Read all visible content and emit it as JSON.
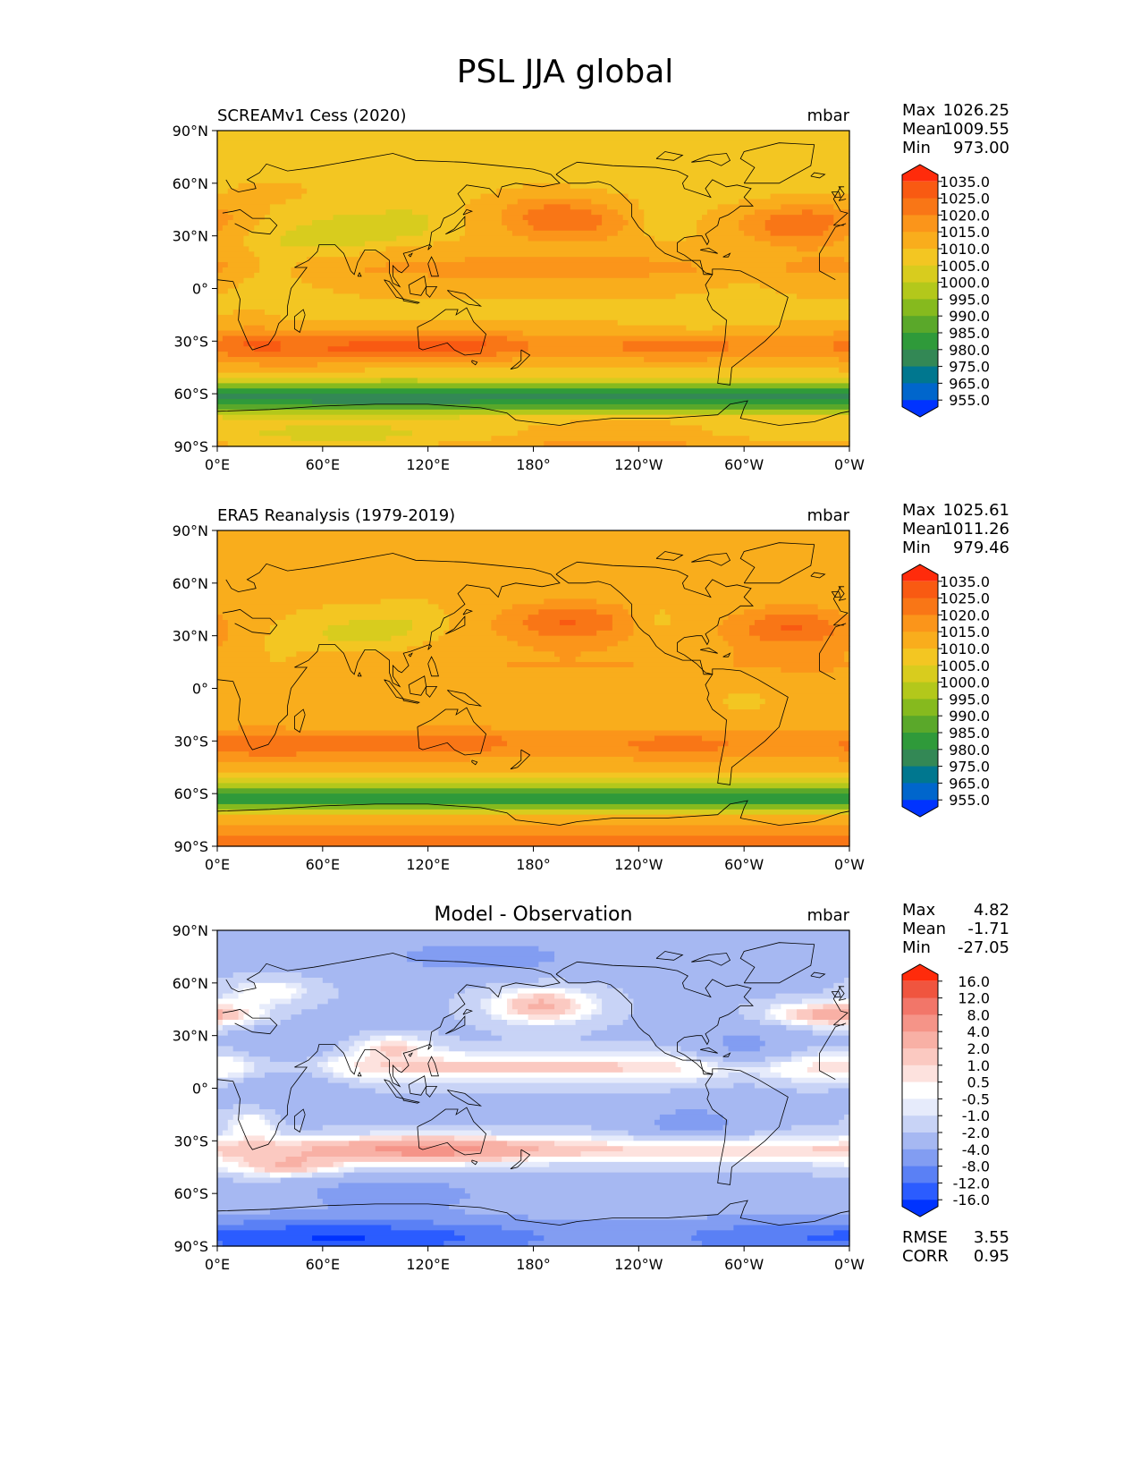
{
  "figure_title": "PSL JJA global",
  "lat_ticks": [
    "90°N",
    "60°N",
    "30°N",
    "0°",
    "30°S",
    "60°S",
    "90°S"
  ],
  "lon_ticks": [
    "0°E",
    "60°E",
    "120°E",
    "180°",
    "120°W",
    "60°W",
    "0°W"
  ],
  "colors": {
    "abs": [
      "#0033ff",
      "#0066cc",
      "#00778f",
      "#338855",
      "#2f9a3a",
      "#5aa82a",
      "#86ba1e",
      "#b3c81b",
      "#d8cc1e",
      "#f3c622",
      "#f9ad1c",
      "#fb951a",
      "#f97616",
      "#f95a12",
      "#ff2b0b"
    ],
    "diff": [
      "#0033ff",
      "#2b5cff",
      "#5a80f5",
      "#829df2",
      "#a6b8f2",
      "#c8d3f6",
      "#e6ebfb",
      "#ffffff",
      "#fde2de",
      "#fbc9c1",
      "#f8b0a5",
      "#f59488",
      "#f27669",
      "#f0553f",
      "#ff2b0b"
    ]
  },
  "chart_data": [
    {
      "type": "heatmap",
      "title": "SCREAMv1 Cess (2020)",
      "units": "mbar",
      "stats": [
        {
          "label": "Max",
          "value": "1026.25"
        },
        {
          "label": "Mean",
          "value": "1009.55"
        },
        {
          "label": "Min",
          "value": "973.00"
        }
      ],
      "colorbar_levels": [
        "1035.0",
        "1025.0",
        "1020.0",
        "1015.0",
        "1010.0",
        "1005.0",
        "1000.0",
        "995.0",
        "990.0",
        "985.0",
        "980.0",
        "975.0",
        "965.0",
        "955.0"
      ],
      "colormap": "abs",
      "x_range": [
        0,
        360
      ],
      "y_range": [
        -90,
        90
      ],
      "land_pressure_present": true
    },
    {
      "type": "heatmap",
      "title": "ERA5 Reanalysis (1979-2019)",
      "units": "mbar",
      "stats": [
        {
          "label": "Max",
          "value": "1025.61"
        },
        {
          "label": "Mean",
          "value": "1011.26"
        },
        {
          "label": "Min",
          "value": "979.46"
        }
      ],
      "colorbar_levels": [
        "1035.0",
        "1025.0",
        "1020.0",
        "1015.0",
        "1010.0",
        "1005.0",
        "1000.0",
        "995.0",
        "990.0",
        "985.0",
        "980.0",
        "975.0",
        "965.0",
        "955.0"
      ],
      "colormap": "abs",
      "x_range": [
        0,
        360
      ],
      "y_range": [
        -90,
        90
      ]
    },
    {
      "type": "heatmap",
      "title": "Model - Observation",
      "units": "mbar",
      "stats": [
        {
          "label": "Max",
          "value": "4.82"
        },
        {
          "label": "Mean",
          "value": "-1.71"
        },
        {
          "label": "Min",
          "value": "-27.05"
        }
      ],
      "colorbar_levels": [
        "16.0",
        "12.0",
        "8.0",
        "4.0",
        "2.0",
        "1.0",
        "0.5",
        "-0.5",
        "-1.0",
        "-2.0",
        "-4.0",
        "-8.0",
        "-12.0",
        "-16.0"
      ],
      "colormap": "diff",
      "x_range": [
        0,
        360
      ],
      "y_range": [
        -90,
        90
      ],
      "metrics": [
        {
          "label": "RMSE",
          "value": "3.55"
        },
        {
          "label": "CORR",
          "value": "0.95"
        }
      ]
    }
  ]
}
